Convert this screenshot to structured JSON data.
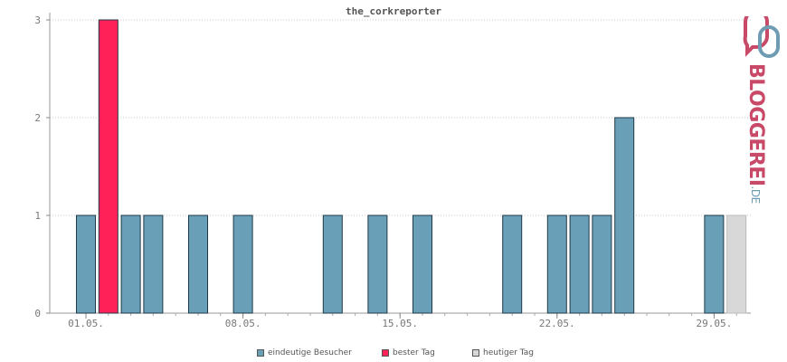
{
  "chart_data": {
    "type": "bar",
    "title": "the_corkreporter",
    "ylim": [
      0,
      3
    ],
    "y_ticks": [
      0,
      1,
      2,
      3
    ],
    "x_tick_labels": [
      "01.05.",
      "08.05.",
      "15.05.",
      "22.05.",
      "29.05."
    ],
    "x_tick_positions": [
      1,
      8,
      15,
      22,
      29
    ],
    "grid": true,
    "legend_placement": "bottom",
    "series": [
      {
        "name": "eindeutige Besucher",
        "color": "#6a9fb8"
      },
      {
        "name": "bester Tag",
        "color": "#ff2158"
      },
      {
        "name": "heutiger Tag",
        "color": "#d8d8d8"
      }
    ],
    "bars": [
      {
        "day": 1,
        "value": 1,
        "series": "eindeutige Besucher"
      },
      {
        "day": 2,
        "value": 3,
        "series": "bester Tag"
      },
      {
        "day": 3,
        "value": 1,
        "series": "eindeutige Besucher"
      },
      {
        "day": 4,
        "value": 1,
        "series": "eindeutige Besucher"
      },
      {
        "day": 6,
        "value": 1,
        "series": "eindeutige Besucher"
      },
      {
        "day": 8,
        "value": 1,
        "series": "eindeutige Besucher"
      },
      {
        "day": 12,
        "value": 1,
        "series": "eindeutige Besucher"
      },
      {
        "day": 14,
        "value": 1,
        "series": "eindeutige Besucher"
      },
      {
        "day": 16,
        "value": 1,
        "series": "eindeutige Besucher"
      },
      {
        "day": 20,
        "value": 1,
        "series": "eindeutige Besucher"
      },
      {
        "day": 22,
        "value": 1,
        "series": "eindeutige Besucher"
      },
      {
        "day": 23,
        "value": 1,
        "series": "eindeutige Besucher"
      },
      {
        "day": 24,
        "value": 1,
        "series": "eindeutige Besucher"
      },
      {
        "day": 25,
        "value": 2,
        "series": "eindeutige Besucher"
      },
      {
        "day": 29,
        "value": 1,
        "series": "eindeutige Besucher"
      },
      {
        "day": 30,
        "value": 1,
        "series": "heutiger Tag"
      }
    ]
  },
  "legend": {
    "items": [
      {
        "label": "eindeutige Besucher",
        "color": "#6a9fb8"
      },
      {
        "label": "bester Tag",
        "color": "#ff2158"
      },
      {
        "label": "heutiger Tag",
        "color": "#d8d8d8"
      }
    ]
  },
  "logo": {
    "main": "BLOGGEREI",
    "tld": ".DE"
  }
}
